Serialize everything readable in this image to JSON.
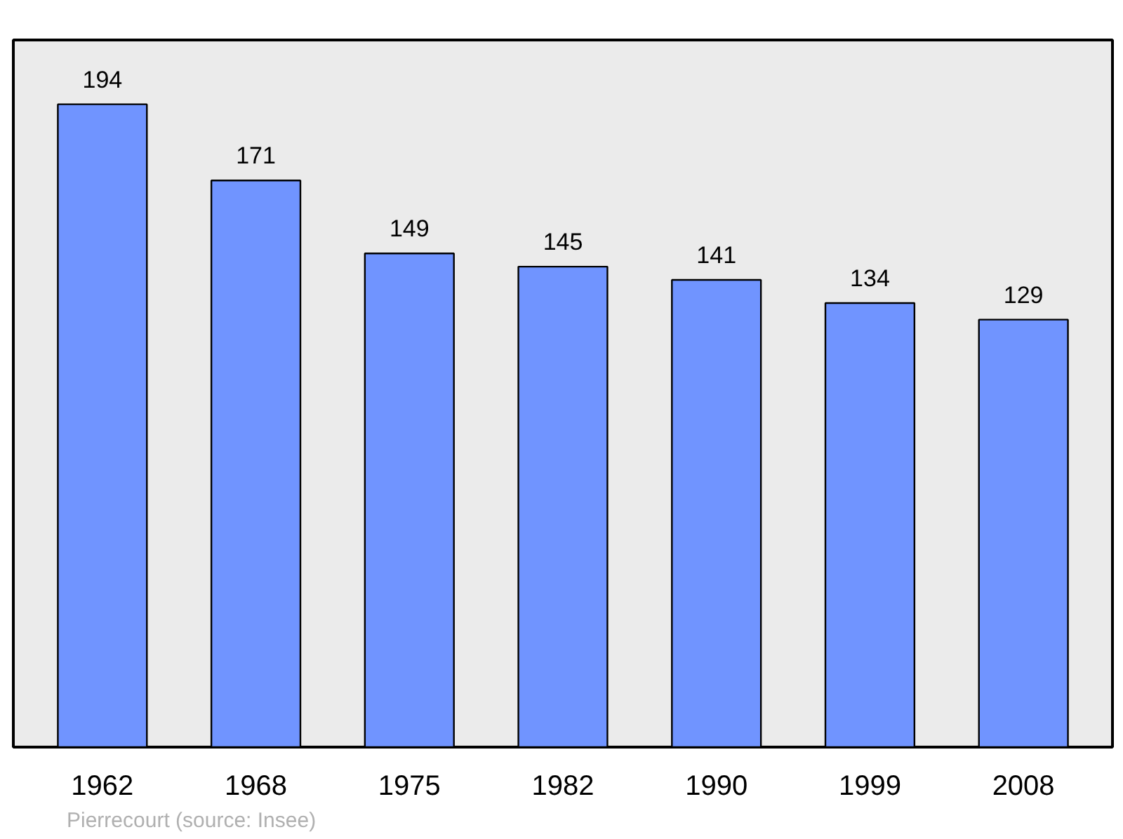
{
  "chart_data": {
    "type": "bar",
    "categories": [
      "1962",
      "1968",
      "1975",
      "1982",
      "1990",
      "1999",
      "2008"
    ],
    "values": [
      194,
      171,
      149,
      145,
      141,
      134,
      129
    ],
    "color": "#7094ff",
    "data_labels": true,
    "grid": false,
    "annotations": [
      "Pierrecourt    (source: Insee)"
    ]
  }
}
